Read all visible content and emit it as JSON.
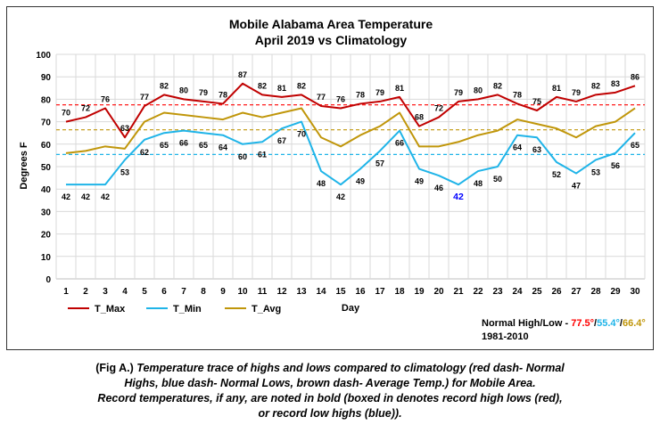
{
  "chart_data": {
    "type": "line",
    "title": "Mobile Alabama Area Temperature",
    "subtitle": "April 2019 vs Climatology",
    "xlabel": "Day",
    "ylabel": "Degrees F",
    "ylim": [
      0,
      100
    ],
    "yticks": [
      0,
      10,
      20,
      30,
      40,
      50,
      60,
      70,
      80,
      90,
      100
    ],
    "x": [
      1,
      2,
      3,
      4,
      5,
      6,
      7,
      8,
      9,
      10,
      11,
      12,
      13,
      14,
      15,
      16,
      17,
      18,
      19,
      20,
      21,
      22,
      23,
      24,
      25,
      26,
      27,
      28,
      29,
      30
    ],
    "grid": true,
    "legend_position": "bottom-left",
    "series": [
      {
        "name": "T_Max",
        "color": "#c00000",
        "labeled": true,
        "values": [
          70,
          72,
          76,
          63,
          77,
          82,
          80,
          79,
          78,
          87,
          82,
          81,
          82,
          77,
          76,
          78,
          79,
          81,
          68,
          72,
          79,
          80,
          82,
          78,
          75,
          81,
          79,
          82,
          83,
          86
        ]
      },
      {
        "name": "T_Min",
        "color": "#1fb4e8",
        "labeled": true,
        "values": [
          42,
          42,
          42,
          53,
          62,
          65,
          66,
          65,
          64,
          60,
          61,
          67,
          70,
          48,
          42,
          49,
          57,
          66,
          49,
          46,
          42,
          48,
          50,
          64,
          63,
          52,
          47,
          53,
          56,
          65
        ]
      },
      {
        "name": "T_Avg",
        "color": "#c0960a",
        "labeled": false,
        "values": [
          56,
          57,
          59,
          58,
          70,
          74,
          73,
          72,
          71,
          74,
          72,
          74,
          76,
          63,
          59,
          64,
          68,
          74,
          59,
          59,
          61,
          64,
          66,
          71,
          69,
          67,
          63,
          68,
          70,
          76
        ]
      }
    ],
    "reference_lines": [
      {
        "value": 77.5,
        "color": "#ff0000"
      },
      {
        "value": 55.4,
        "color": "#1fb4e8"
      },
      {
        "value": 66.4,
        "color": "#c0960a"
      }
    ],
    "record_highlight": {
      "series": "T_Min",
      "day": 21,
      "color": "#0000ff"
    }
  },
  "normals": {
    "prefix": "Normal High/Low - ",
    "high": "77.5°",
    "low": "55.4°",
    "avg": "66.4°",
    "high_color": "#ff0000",
    "low_color": "#1fb4e8",
    "avg_color": "#c0960a",
    "period": "1981-2010"
  },
  "caption": {
    "lead": "(Fig A.)",
    "line1": " Temperature trace of highs and lows compared to climatology (red dash- Normal",
    "line2": "Highs, blue dash- Normal Lows, brown dash- Average Temp.) for Mobile Area.",
    "line3": "Record temperatures, if any, are noted in bold (boxed in denotes record high lows (red),",
    "line4": "or record low highs (blue))."
  }
}
